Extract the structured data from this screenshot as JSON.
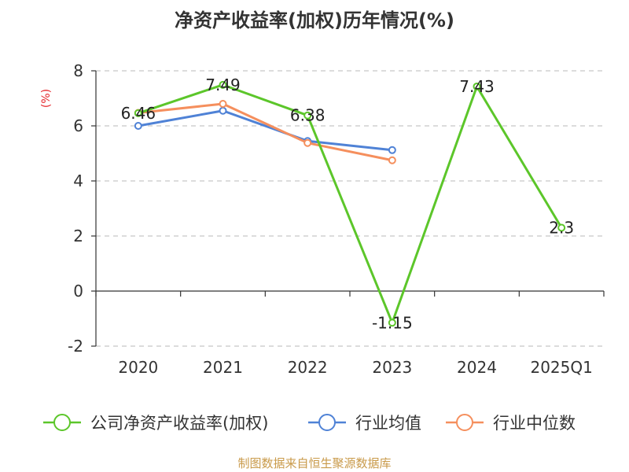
{
  "chart_data": {
    "type": "line",
    "title": "净资产收益率(加权)历年情况(%)",
    "ylabel": "(%)",
    "xlabel": "",
    "categories": [
      "2020",
      "2021",
      "2022",
      "2023",
      "2024",
      "2025Q1"
    ],
    "ylim": [
      -2,
      8
    ],
    "yticks": [
      -2,
      0,
      2,
      4,
      6,
      8
    ],
    "grid": true,
    "legend_position": "bottom",
    "series": [
      {
        "name": "公司净资产收益率(加权)",
        "color": "#5cc62a",
        "values": [
          6.46,
          7.49,
          6.38,
          -1.15,
          7.43,
          2.3
        ],
        "labels": [
          "6.46",
          "7.49",
          "6.38",
          "-1.15",
          "7.43",
          "2.3"
        ]
      },
      {
        "name": "行业均值",
        "color": "#4f82d6",
        "values": [
          6.0,
          6.55,
          5.45,
          5.12,
          null,
          null
        ]
      },
      {
        "name": "行业中位数",
        "color": "#f58f5d",
        "values": [
          6.47,
          6.8,
          5.38,
          4.75,
          null,
          null
        ]
      }
    ],
    "source": "制图数据来自恒生聚源数据库"
  }
}
